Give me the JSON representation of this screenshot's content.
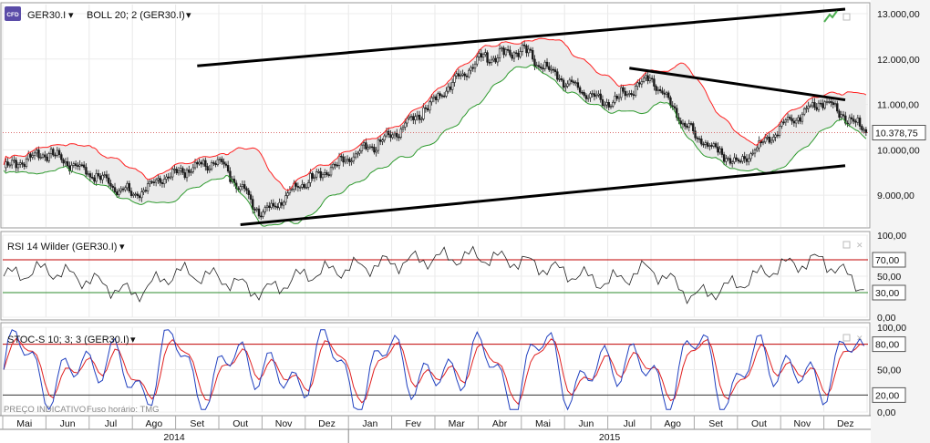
{
  "header": {
    "symbol": "GER30.I",
    "indicator": "BOLL 20; 2 (GER30.I)"
  },
  "watermark": {
    "price_type": "PREÇO INDICATIVO",
    "timezone": "Fuso horário: TMG"
  },
  "colors": {
    "candle": "#1a1a1a",
    "boll_upper": "#ff2020",
    "boll_lower": "#2e9a2e",
    "boll_fill": "#ececec",
    "trendline": "#000000",
    "level_red": "#c00000",
    "level_green": "#2e8b2e",
    "stoch_k": "#1f3fbf",
    "stoch_d": "#e02020",
    "current_price_line": "#d04040"
  },
  "chart_data": [
    {
      "type": "candlestick",
      "title": "GER30.I",
      "ylim": [
        8300,
        13200
      ],
      "y_ticks": [
        "9.000,00",
        "10.000,00",
        "11.000,00",
        "12.000,00",
        "13.000,00"
      ],
      "current_price_label": "10.378,75",
      "current_price": 10378.75,
      "series": [
        {
          "name": "BOLL 20; 2 (GER30.I)"
        }
      ],
      "close_path": [
        [
          "May 2014",
          9600
        ],
        [
          "Jun 2014",
          9950
        ],
        [
          "Jul 2014",
          9500
        ],
        [
          "Aug 2014 (early)",
          9000
        ],
        [
          "Aug 2014 (late)",
          9500
        ],
        [
          "Sep 2014",
          9750
        ],
        [
          "Oct 2014",
          8600
        ],
        [
          "Nov 2014",
          9300
        ],
        [
          "Dec 2014",
          9800
        ],
        [
          "Jan 2015",
          10300
        ],
        [
          "Feb 2015",
          11100
        ],
        [
          "Mar 2015",
          12000
        ],
        [
          "Apr 2015",
          12200
        ],
        [
          "May 2015",
          11500
        ],
        [
          "Jun 2015",
          11000
        ],
        [
          "Jul 2015",
          11600
        ],
        [
          "Aug 2015",
          10300
        ],
        [
          "Sep 2015",
          9700
        ],
        [
          "Oct 2015",
          10500
        ],
        [
          "Nov 2015",
          11100
        ],
        [
          "Dec 2015",
          10380
        ]
      ],
      "trendlines": [
        {
          "name": "upper channel",
          "from": [
            "Sep 2014",
            11850
          ],
          "to": [
            "Dec 2015",
            13100
          ]
        },
        {
          "name": "lower channel",
          "from": [
            "Oct 2014",
            8350
          ],
          "to": [
            "Dec 2015",
            9650
          ]
        },
        {
          "name": "descending resistance",
          "from": [
            "Jul 2015",
            11800
          ],
          "to": [
            "Dec 2015",
            11100
          ]
        }
      ]
    },
    {
      "type": "line",
      "title": "RSI 14 Wilder (GER30.I)",
      "ylim": [
        0,
        100
      ],
      "y_ticks": [
        "0,00",
        "50,00",
        "100,00"
      ],
      "levels": [
        {
          "value": 70,
          "label": "70,00"
        },
        {
          "value": 30,
          "label": "30,00"
        }
      ],
      "series": [
        {
          "name": "RSI 14 Wilder (GER30.I)",
          "values": [
            50,
            58,
            45,
            28,
            55,
            48,
            30,
            52,
            60,
            66,
            72,
            74,
            68,
            55,
            42,
            60,
            25,
            40,
            62,
            70,
            35
          ]
        }
      ]
    },
    {
      "type": "line",
      "title": "STOC-S 10; 3; 3 (GER30.I)",
      "ylim": [
        0,
        100
      ],
      "y_ticks": [
        "0,00",
        "50,00",
        "100,00"
      ],
      "levels": [
        {
          "value": 80,
          "label": "80,00"
        },
        {
          "value": 20,
          "label": "20,00"
        }
      ],
      "series": [
        {
          "name": "%K"
        },
        {
          "name": "%D"
        }
      ]
    }
  ],
  "x_axis": {
    "months": [
      "Mai",
      "Jun",
      "Jul",
      "Ago",
      "Set",
      "Out",
      "Nov",
      "Dez",
      "Jan",
      "Fev",
      "Mar",
      "Abr",
      "Mai",
      "Jun",
      "Jul",
      "Ago",
      "Set",
      "Out",
      "Nov",
      "Dez"
    ],
    "years": [
      "2014",
      "2015"
    ]
  }
}
